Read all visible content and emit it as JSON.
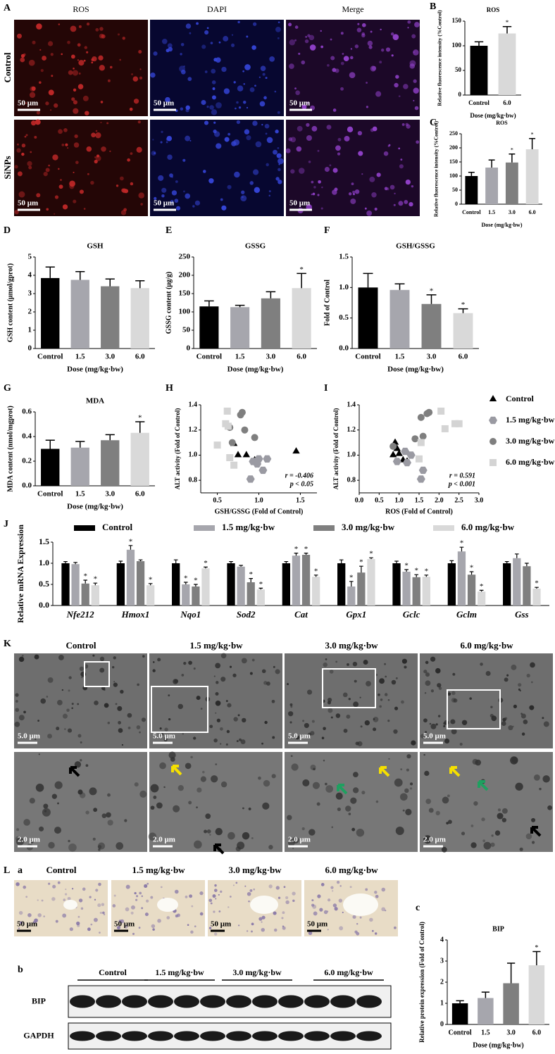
{
  "panels": {
    "letters": [
      "A",
      "B",
      "C",
      "D",
      "E",
      "F",
      "G",
      "H",
      "I",
      "J",
      "K",
      "L"
    ],
    "sub_letters": [
      "a",
      "b",
      "c"
    ],
    "A": {
      "columns": [
        "ROS",
        "DAPI",
        "Merge"
      ],
      "rows": [
        "Control",
        "SiNPs"
      ],
      "scale_bar": "50 μm"
    },
    "K": {
      "columns": [
        "Control",
        "1.5 mg/kg·bw",
        "3.0 mg/kg·bw",
        "6.0 mg/kg·bw"
      ],
      "scale_top": "5.0 μm",
      "scale_bottom": "2.0 μm"
    },
    "L_a": {
      "columns": [
        "Control",
        "1.5 mg/kg·bw",
        "3.0 mg/kg·bw",
        "6.0 mg/kg·bw"
      ],
      "scale_bar": "50 μm"
    },
    "L_b": {
      "groups": [
        "Control",
        "1.5 mg/kg·bw",
        "3.0 mg/kg·bw",
        "6.0 mg/kg·bw"
      ],
      "rows": [
        "BIP",
        "GAPDH"
      ]
    }
  },
  "chart_data": [
    {
      "type": "bar",
      "title": "ROS",
      "xlabel": "Dose (mg/kg·bw)",
      "ylabel": "Relative fluorescence intensity (%Control)",
      "categories": [
        "Control",
        "6.0"
      ],
      "values": [
        100,
        125
      ],
      "errors": [
        8,
        14
      ],
      "colors": [
        "#000000",
        "#d9d9d9"
      ],
      "sig": [
        null,
        "*"
      ],
      "ylim": [
        0,
        150
      ],
      "yticks": [
        0,
        50,
        100,
        150
      ]
    },
    {
      "type": "bar",
      "title": "ROS",
      "xlabel": "Dose (mg/kg·bw)",
      "ylabel": "Relative fluorescence intensity (%Control)",
      "categories": [
        "Control",
        "1.5",
        "3.0",
        "6.0"
      ],
      "values": [
        100,
        130,
        148,
        195
      ],
      "errors": [
        13,
        27,
        30,
        38
      ],
      "colors": [
        "#000000",
        "#a6a6ad",
        "#7f7f7f",
        "#d9d9d9"
      ],
      "sig": [
        null,
        null,
        "*",
        "*"
      ],
      "ylim": [
        0,
        250
      ],
      "yticks": [
        0,
        50,
        100,
        150,
        200,
        250
      ]
    },
    {
      "type": "bar",
      "title": "GSH",
      "xlabel": "Dose (mg/kg·bw)",
      "ylabel": "GSH content (μmol/gprot)",
      "categories": [
        "Control",
        "1.5",
        "3.0",
        "6.0"
      ],
      "values": [
        3.85,
        3.75,
        3.4,
        3.3
      ],
      "errors": [
        0.6,
        0.45,
        0.4,
        0.4
      ],
      "colors": [
        "#000000",
        "#a6a6ad",
        "#7f7f7f",
        "#d9d9d9"
      ],
      "sig": [
        null,
        null,
        null,
        null
      ],
      "ylim": [
        0,
        5
      ],
      "yticks": [
        0,
        1,
        2,
        3,
        4,
        5
      ]
    },
    {
      "type": "bar",
      "title": "GSSG",
      "xlabel": "Dose (mg/kg·bw)",
      "ylabel": "GSSG content (μg/g)",
      "categories": [
        "Control",
        "1.5",
        "3.0",
        "6.0"
      ],
      "values": [
        115,
        113,
        137,
        165
      ],
      "errors": [
        15,
        5,
        18,
        40
      ],
      "colors": [
        "#000000",
        "#a6a6ad",
        "#7f7f7f",
        "#d9d9d9"
      ],
      "sig": [
        null,
        null,
        null,
        "*"
      ],
      "ylim": [
        0,
        250
      ],
      "yticks": [
        0,
        50,
        100,
        150,
        200,
        250
      ]
    },
    {
      "type": "bar",
      "title": "GSH/GSSG",
      "xlabel": "Dose (mg/kg·bw)",
      "ylabel": "Fold of Control",
      "categories": [
        "Control",
        "1.5",
        "3.0",
        "6.0"
      ],
      "values": [
        1.0,
        0.96,
        0.73,
        0.58
      ],
      "errors": [
        0.23,
        0.1,
        0.15,
        0.07
      ],
      "colors": [
        "#000000",
        "#a6a6ad",
        "#7f7f7f",
        "#d9d9d9"
      ],
      "sig": [
        null,
        null,
        "*",
        "*"
      ],
      "ylim": [
        0,
        1.5
      ],
      "yticks": [
        {
          "value": 0,
          "label": "0.0"
        },
        0.5,
        {
          "value": 1,
          "label": "1.0"
        },
        1.5
      ]
    },
    {
      "type": "bar",
      "title": "MDA",
      "xlabel": "Dose (mg/kg·bw)",
      "ylabel": "MDA content (nmol/mgprot)",
      "categories": [
        "Control",
        "1.5",
        "3.0",
        "6.0"
      ],
      "values": [
        0.3,
        0.31,
        0.37,
        0.43
      ],
      "errors": [
        0.07,
        0.05,
        0.045,
        0.09
      ],
      "colors": [
        "#000000",
        "#a6a6ad",
        "#7f7f7f",
        "#d9d9d9"
      ],
      "sig": [
        null,
        null,
        null,
        "*"
      ],
      "ylim": [
        0,
        0.6
      ],
      "yticks": [
        {
          "value": 0,
          "label": "0.0"
        },
        0.2,
        0.4,
        0.6
      ]
    },
    {
      "type": "scatter",
      "xlabel": "GSH/GSSG (Fold of Control)",
      "ylabel": "ALT activity (Fold of Control)",
      "annotations": [
        "r = -0.406",
        "p < 0.05"
      ],
      "xlim": [
        0.3,
        1.7
      ],
      "xticks": [
        0.5,
        {
          "value": 1,
          "label": "1.0"
        },
        1.5
      ],
      "ylim": [
        0.7,
        1.4
      ],
      "yticks": [
        0.8,
        {
          "value": 1,
          "label": "1.0"
        },
        1.2,
        1.4
      ],
      "series": [
        {
          "marker": "triangle",
          "color": "#000000",
          "x": [
            0.75,
            0.7,
            0.85,
            0.95,
            0.97,
            1.45
          ],
          "values": [
            1.0,
            1.09,
            1.0,
            0.96,
            0.95,
            1.03
          ]
        },
        {
          "marker": "hexagon",
          "color": "#9a9aa2",
          "x": [
            0.93,
            1.0,
            1.05,
            0.9,
            1.1,
            0.98
          ],
          "values": [
            0.95,
            0.97,
            0.88,
            0.81,
            0.97,
            0.93
          ]
        },
        {
          "marker": "circle",
          "color": "#7f7f7f",
          "x": [
            0.65,
            0.68,
            0.78,
            0.8,
            0.95,
            0.83
          ],
          "values": [
            1.22,
            1.1,
            1.32,
            1.34,
            1.14,
            1.2
          ]
        },
        {
          "marker": "square",
          "color": "#d4d4d4",
          "x": [
            0.6,
            0.63,
            0.62,
            0.5,
            0.65,
            0.7
          ],
          "values": [
            1.25,
            1.23,
            1.35,
            1.08,
            0.98,
            0.92
          ]
        }
      ]
    },
    {
      "type": "scatter",
      "xlabel": "ROS (Fold of Control)",
      "ylabel": "ALT activity (Fold of Control)",
      "annotations": [
        "r = 0.591",
        "p < 0.001"
      ],
      "legend": "right",
      "xlim": [
        0,
        3
      ],
      "xticks": [
        {
          "value": 0,
          "label": "0.0"
        },
        0.5,
        {
          "value": 1,
          "label": "1.0"
        },
        1.5,
        {
          "value": 2,
          "label": "2.0"
        },
        2.5,
        {
          "value": 3,
          "label": "3.0"
        }
      ],
      "ylim": [
        0.7,
        1.4
      ],
      "yticks": [
        0.8,
        {
          "value": 1,
          "label": "1.0"
        },
        1.2,
        1.4
      ],
      "series": [
        {
          "name": "Control",
          "marker": "triangle",
          "color": "#000000",
          "x": [
            0.85,
            0.9,
            0.95,
            1.0,
            1.1,
            1.2
          ],
          "values": [
            1.0,
            1.1,
            1.05,
            1.01,
            0.96,
            0.95
          ]
        },
        {
          "name": "1.5 mg/kg·bw",
          "marker": "hexagon",
          "color": "#9a9aa2",
          "x": [
            0.95,
            1.15,
            1.3,
            1.55,
            1.6,
            1.2
          ],
          "values": [
            0.95,
            1.03,
            1.0,
            0.81,
            0.88,
            0.94
          ]
        },
        {
          "name": "3.0 mg/kg·bw",
          "marker": "circle",
          "color": "#7f7f7f",
          "x": [
            0.85,
            1.55,
            1.7,
            1.75,
            1.6,
            1.4
          ],
          "values": [
            1.07,
            1.3,
            1.33,
            1.34,
            1.15,
            1.13
          ]
        },
        {
          "name": "6.0 mg/kg·bw",
          "marker": "square",
          "color": "#d4d4d4",
          "x": [
            1.5,
            1.55,
            2.05,
            2.15,
            2.4,
            2.5
          ],
          "values": [
            0.97,
            1.1,
            1.35,
            1.21,
            1.25,
            1.25
          ]
        }
      ]
    },
    {
      "type": "grouped_bar",
      "ylabel": "Relative mRNA Expression",
      "categories": [
        "Nfe212",
        "Hmox1",
        "Nqo1",
        "Sod2",
        "Cat",
        "Gpx1",
        "Gclc",
        "Gclm",
        "Gss"
      ],
      "ylim": [
        0,
        1.5
      ],
      "yticks": [
        {
          "value": 0,
          "label": "0.0"
        },
        0.5,
        {
          "value": 1,
          "label": "1.0"
        },
        1.5
      ],
      "series": [
        {
          "name": "Control",
          "color": "#000000",
          "values": [
            1.0,
            1.0,
            1.0,
            1.0,
            1.0,
            1.0,
            1.0,
            1.0,
            1.0
          ],
          "errors": [
            0.04,
            0.05,
            0.08,
            0.04,
            0.04,
            0.08,
            0.05,
            0.06,
            0.04
          ],
          "sig": [
            null,
            null,
            null,
            null,
            null,
            null,
            null,
            null,
            null
          ]
        },
        {
          "name": "1.5 mg/kg·bw",
          "color": "#a6a6ad",
          "values": [
            0.98,
            1.32,
            0.5,
            0.92,
            1.18,
            0.45,
            0.8,
            1.28,
            1.12
          ],
          "errors": [
            0.04,
            0.1,
            0.05,
            0.03,
            0.06,
            0.12,
            0.05,
            0.1,
            0.1
          ],
          "sig": [
            null,
            "*",
            "*",
            null,
            "*",
            "*",
            "*",
            "*",
            null
          ]
        },
        {
          "name": "3.0 mg/kg·bw",
          "color": "#7f7f7f",
          "values": [
            0.52,
            1.05,
            0.45,
            0.55,
            1.2,
            0.78,
            0.67,
            0.73,
            0.93
          ],
          "errors": [
            0.08,
            0.03,
            0.05,
            0.09,
            0.04,
            0.15,
            0.06,
            0.07,
            0.07
          ],
          "sig": [
            "*",
            null,
            "*",
            "*",
            "*",
            "*",
            "*",
            "*",
            null
          ]
        },
        {
          "name": "6.0 mg/kg·bw",
          "color": "#d9d9d9",
          "values": [
            0.48,
            0.48,
            0.88,
            0.38,
            0.68,
            1.1,
            0.68,
            0.33,
            0.4
          ],
          "errors": [
            0.05,
            0.04,
            0.03,
            0.03,
            0.04,
            0.03,
            0.04,
            0.03,
            0.03
          ],
          "sig": [
            "*",
            "*",
            "*",
            "*",
            "*",
            "*",
            "*",
            "*",
            "*"
          ]
        }
      ]
    },
    {
      "type": "bar",
      "title": "BIP",
      "xlabel": "Dose (mg/kg·bw)",
      "ylabel": "Relative protein expression (Fold of Control)",
      "categories": [
        "Control",
        "1.5",
        "3.0",
        "6.0"
      ],
      "values": [
        1.0,
        1.25,
        1.95,
        2.8
      ],
      "errors": [
        0.12,
        0.28,
        0.95,
        0.65
      ],
      "colors": [
        "#000000",
        "#a6a6ad",
        "#7f7f7f",
        "#d9d9d9"
      ],
      "sig": [
        null,
        null,
        null,
        "*"
      ],
      "ylim": [
        0,
        4
      ],
      "yticks": [
        0,
        1,
        2,
        3,
        4
      ]
    }
  ]
}
